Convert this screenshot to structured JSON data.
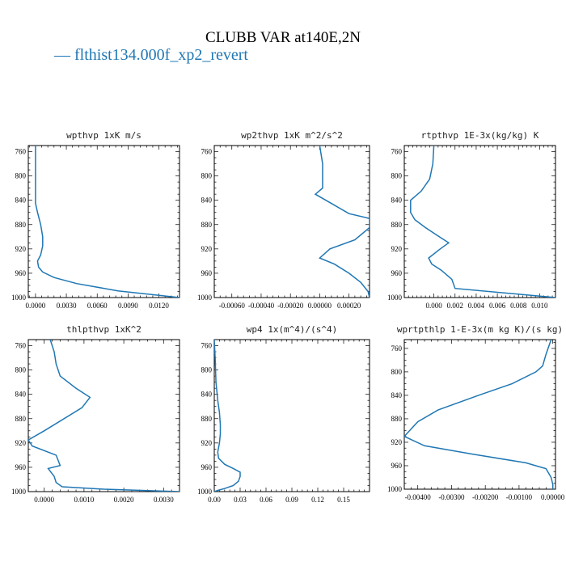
{
  "figure": {
    "title": "CLUBB VAR at140E,2N",
    "legend": {
      "label": "flthist134.000f_xp2_revert",
      "marker": "—",
      "color": "#1f77b4"
    }
  },
  "chart_data": [
    {
      "type": "line",
      "title": "wpthvp  1xK m/s",
      "xlim": [
        -0.0007,
        0.014
      ],
      "ylim": [
        1000,
        750
      ],
      "xticks": [
        0.0,
        0.003,
        0.006,
        0.009,
        0.012
      ],
      "xticklabels": [
        "0.0000",
        "0.0030",
        "0.0060",
        "0.0090",
        "0.0120"
      ],
      "yticks": [
        760,
        800,
        840,
        880,
        920,
        960,
        1000
      ],
      "series": [
        {
          "color": "#1f77b4",
          "x": [
            0.0,
            0.0,
            0.0,
            0.0,
            0.0002,
            0.0005,
            0.0007,
            0.0007,
            0.0005,
            0.0002,
            0.0003,
            0.0007,
            0.0018,
            0.004,
            0.008,
            0.014
          ],
          "y": [
            750,
            780,
            820,
            845,
            860,
            880,
            900,
            915,
            930,
            940,
            950,
            958,
            967,
            977,
            989,
            1000
          ]
        }
      ]
    },
    {
      "type": "line",
      "title": "wp2thvp  1xK m^2/s^2",
      "xlim": [
        -0.00072,
        0.00034
      ],
      "ylim": [
        1000,
        750
      ],
      "xticks": [
        -0.0006,
        -0.0004,
        -0.0002,
        0.0,
        0.0002
      ],
      "xticklabels": [
        "-0.00060",
        "-0.00040",
        "-0.00020",
        "0.00000",
        "0.00020"
      ],
      "yticks": [
        760,
        800,
        840,
        880,
        920,
        960,
        1000
      ],
      "series": [
        {
          "color": "#1f77b4",
          "x": [
            0.0,
            2e-05,
            2e-05,
            -3e-05,
            0.0001,
            0.0002,
            0.00034,
            0.00034,
            0.00024,
            7e-05,
            0.0,
            0.0001,
            0.0002,
            0.00028,
            0.00033,
            0.00034
          ],
          "y": [
            750,
            780,
            820,
            830,
            848,
            862,
            870,
            885,
            905,
            920,
            935,
            945,
            960,
            975,
            990,
            1000
          ]
        }
      ]
    },
    {
      "type": "line",
      "title": "rtpthvp  1E-3x(kg/kg) K",
      "xlim": [
        -0.0028,
        0.0115
      ],
      "ylim": [
        1000,
        750
      ],
      "xticks": [
        0.0,
        0.002,
        0.004,
        0.006,
        0.008,
        0.01
      ],
      "xticklabels": [
        "0.000",
        "0.002",
        "0.004",
        "0.006",
        "0.008",
        "0.010"
      ],
      "yticks": [
        760,
        800,
        840,
        880,
        920,
        960,
        1000
      ],
      "series": [
        {
          "color": "#1f77b4",
          "x": [
            0.0,
            -0.0001,
            -0.0004,
            -0.0012,
            -0.0022,
            -0.0022,
            -0.0018,
            -0.0008,
            0.0005,
            0.0014,
            0.0006,
            -0.0005,
            -0.0002,
            0.0007,
            0.0017,
            0.002,
            0.0115
          ],
          "y": [
            750,
            780,
            805,
            825,
            840,
            860,
            872,
            885,
            900,
            910,
            920,
            935,
            945,
            955,
            970,
            985,
            1000
          ]
        }
      ]
    },
    {
      "type": "line",
      "title": "thlpthvp  1xK^2",
      "xlim": [
        -0.0004,
        0.0034
      ],
      "ylim": [
        1000,
        750
      ],
      "xticks": [
        0.0,
        0.001,
        0.002,
        0.003
      ],
      "xticklabels": [
        "0.0000",
        "0.0010",
        "0.0020",
        "0.0030"
      ],
      "yticks": [
        760,
        800,
        840,
        880,
        920,
        960,
        1000
      ],
      "series": [
        {
          "color": "#1f77b4",
          "x": [
            0.00015,
            0.00025,
            0.0003,
            0.0004,
            0.0008,
            0.00115,
            0.00095,
            0.0,
            -0.0004,
            -0.0003,
            0.0003,
            0.0004,
            0.0001,
            0.00025,
            0.0003,
            0.00045,
            0.0015,
            0.0034
          ],
          "y": [
            750,
            770,
            790,
            810,
            830,
            845,
            862,
            900,
            915,
            925,
            940,
            957,
            962,
            975,
            985,
            992,
            996,
            1000
          ]
        }
      ]
    },
    {
      "type": "line",
      "title": "wp4  1x(m^4)/(s^4)",
      "xlim": [
        0.0,
        0.18
      ],
      "ylim": [
        1000,
        750
      ],
      "xticks": [
        0.0,
        0.03,
        0.06,
        0.09,
        0.12,
        0.15
      ],
      "xticklabels": [
        "0.00",
        "0.03",
        "0.06",
        "0.09",
        "0.12",
        "0.15"
      ],
      "yticks": [
        760,
        800,
        840,
        880,
        920,
        960,
        1000
      ],
      "series": [
        {
          "color": "#1f77b4",
          "x": [
            0.0,
            0.001,
            0.002,
            0.004,
            0.006,
            0.007,
            0.007,
            0.006,
            0.004,
            0.005,
            0.012,
            0.022,
            0.03,
            0.03,
            0.028,
            0.022,
            0.012,
            0.004,
            0.0
          ],
          "y": [
            750,
            780,
            820,
            850,
            870,
            890,
            905,
            920,
            935,
            945,
            955,
            962,
            968,
            975,
            983,
            990,
            995,
            998,
            1000
          ]
        }
      ]
    },
    {
      "type": "line",
      "title": "wprtpthlp  1-E-3x(m kg K)/(s kg)",
      "xlim": [
        -0.0044,
        8e-05
      ],
      "ylim": [
        1000,
        745
      ],
      "xticks": [
        -0.004,
        -0.003,
        -0.002,
        -0.001,
        0.0
      ],
      "xticklabels": [
        "-0.00400",
        "-0.00300",
        "-0.00200",
        "-0.00100",
        "0.00000"
      ],
      "yticks": [
        760,
        800,
        840,
        880,
        920,
        960,
        1000
      ],
      "series": [
        {
          "color": "#1f77b4",
          "x": [
            -5e-05,
            -0.0002,
            -0.0003,
            -0.0005,
            -0.0012,
            -0.0022,
            -0.0034,
            -0.004,
            -0.0044,
            -0.0038,
            -0.0024,
            -0.0008,
            -0.0002,
            -5e-05,
            0.0,
            0.0
          ],
          "y": [
            745,
            770,
            790,
            800,
            820,
            840,
            865,
            885,
            910,
            926,
            940,
            955,
            965,
            980,
            992,
            1000
          ]
        }
      ]
    }
  ]
}
